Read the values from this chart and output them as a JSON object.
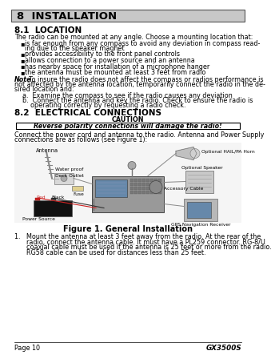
{
  "page_bg": "#ffffff",
  "header_bg": "#c8c8c8",
  "header_text": "8  INSTALLATION",
  "section1_title": "8.1  LOCATION",
  "section1_intro": "The radio can be mounted at any angle. Choose a mounting location that:",
  "bullets": [
    "is far enough from any compass to avoid any deviation in compass read-\ning due to the speaker magnet",
    "provides accessibility to the front panel controls",
    "allows connection to a power source and an antenna",
    "has nearby space for installation of a microphone hanger",
    "the antenna must be mounted at least 3 feet from radio"
  ],
  "note_lines": [
    ": To insure the radio does not affect the compass or radios performance is",
    "not affected by the antenna location, temporarily connect the radio in the de-",
    "sired location and:"
  ],
  "note_items_a": "a.  Examine the compass to see if the radio causes any deviation",
  "note_items_b1": "b.  Connect the antenna and key the radio. Check to ensure the radio is",
  "note_items_b2": "    operating correctly by requesting a radio check.",
  "section2_title": "8.2  ELECTRICAL CONNECTIONS",
  "caution_label": "CAUTION",
  "caution_box_text": "Reverse polarity connections will damage the radio!",
  "connect_lines": [
    "Connect the power cord and antenna to the radio. Antenna and Power Supply",
    "connections are as follows (see Figure 1):"
  ],
  "figure_caption": "Figure 1. General Installation",
  "num1_lines": [
    "1.   Mount the antenna at least 3 feet away from the radio. At the rear of the",
    "      radio, connect the antenna cable. It must have a PL259 connector. RG-8/U",
    "      coaxial cable must be used if the antenna is 25 feet or more from the radio.",
    "      RG58 cable can be used for distances less than 25 feet."
  ],
  "footer_left": "Page 10",
  "footer_right": "GX3500S",
  "body_fs": 5.8,
  "small_fs": 4.8,
  "header_fs": 9.5,
  "sec_fs": 7.5
}
